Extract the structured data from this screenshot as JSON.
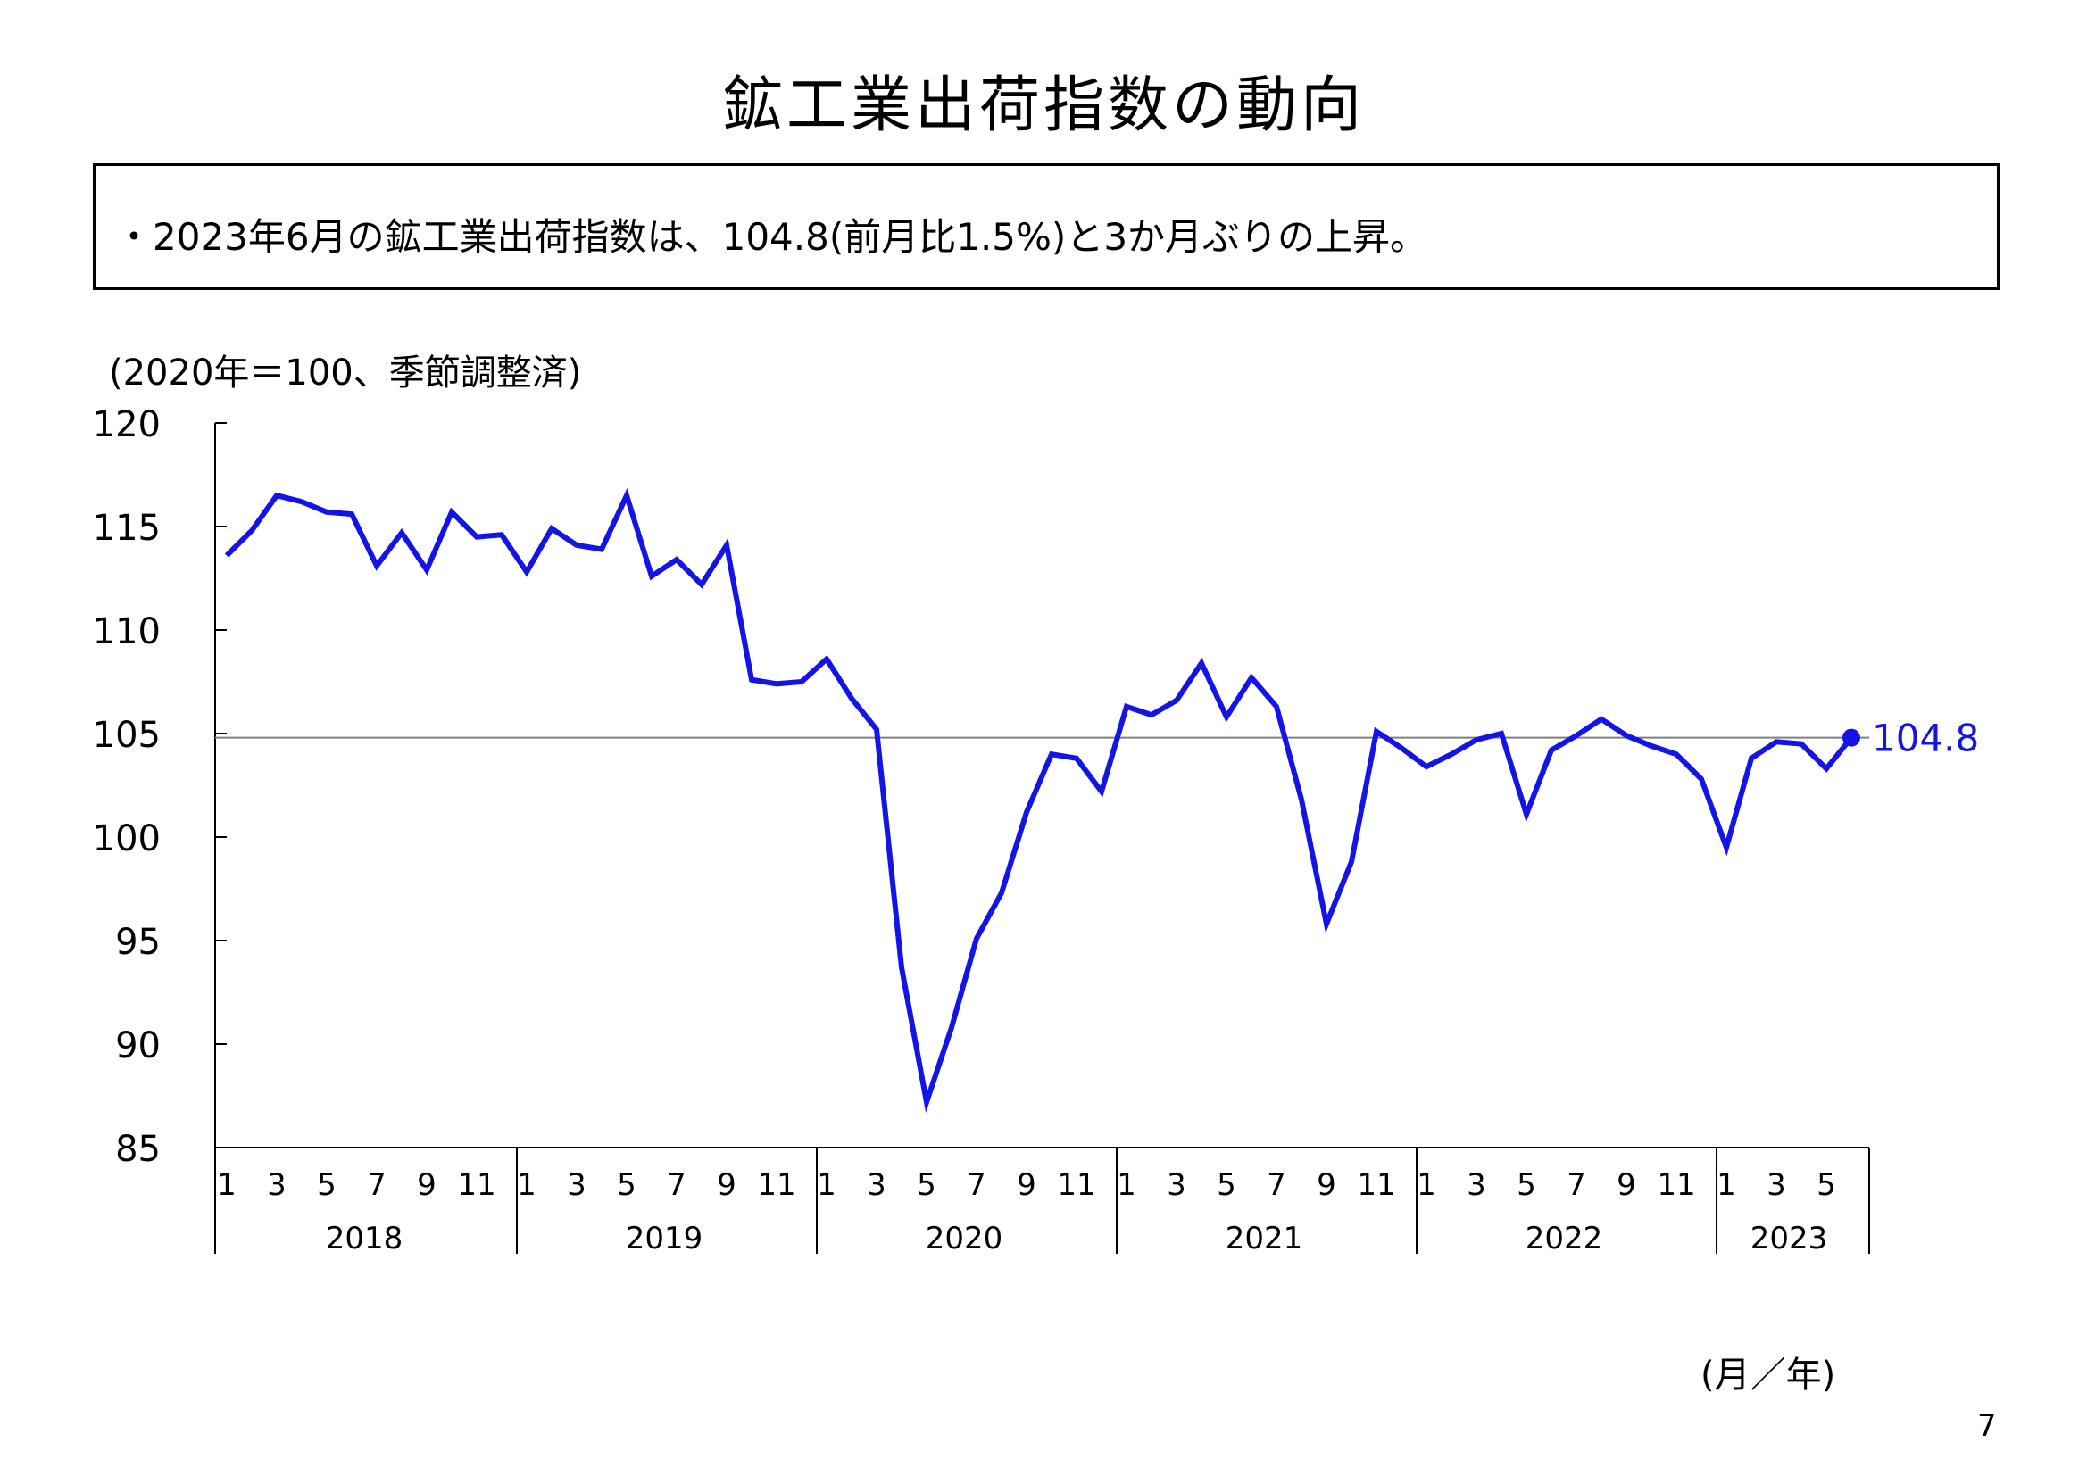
{
  "page": {
    "title": "鉱工業出荷指数の動向",
    "summary": "・2023年6月の鉱工業出荷指数は、104.8(前月比1.5%)と3か月ぶりの上昇。",
    "unit_note": "(2020年＝100、季節調整済)",
    "x_unit": "(月／年)",
    "page_number": "7"
  },
  "chart_data": {
    "type": "line",
    "title": "鉱工業出荷指数の動向",
    "ylabel": "(2020年＝100、季節調整済)",
    "xlabel": "(月／年)",
    "ylim": [
      85,
      120
    ],
    "yticks": [
      "120",
      "115",
      "110",
      "105",
      "100",
      "95",
      "90",
      "85"
    ],
    "month_tick_labels": [
      "1",
      "3",
      "5",
      "7",
      "9",
      "11"
    ],
    "year_groups": [
      {
        "year": "2018",
        "months": 12
      },
      {
        "year": "2019",
        "months": 12
      },
      {
        "year": "2020",
        "months": 12
      },
      {
        "year": "2021",
        "months": 12
      },
      {
        "year": "2022",
        "months": 12
      },
      {
        "year": "2023",
        "months": 6
      }
    ],
    "series": [
      {
        "color": "#1414e6",
        "values": [
          113.6,
          114.8,
          116.5,
          116.2,
          115.7,
          115.6,
          113.1,
          114.7,
          112.9,
          115.7,
          114.5,
          114.6,
          112.8,
          114.9,
          114.1,
          113.9,
          116.5,
          112.6,
          113.4,
          112.2,
          114.1,
          107.6,
          107.4,
          107.5,
          108.6,
          106.7,
          105.2,
          93.7,
          87.2,
          90.8,
          95.1,
          97.3,
          101.2,
          104.0,
          103.8,
          102.2,
          106.3,
          105.9,
          106.6,
          108.4,
          105.8,
          107.7,
          106.3,
          101.8,
          95.8,
          98.8,
          105.1,
          104.3,
          103.4,
          104.0,
          104.7,
          105.0,
          101.1,
          104.2,
          104.9,
          105.7,
          104.9,
          104.4,
          104.0,
          102.8,
          99.5,
          103.8,
          104.6,
          104.5,
          103.3,
          104.8
        ]
      }
    ],
    "reference_line": {
      "value": 104.8,
      "color": "#808080"
    },
    "last_point_label": "104.8"
  }
}
